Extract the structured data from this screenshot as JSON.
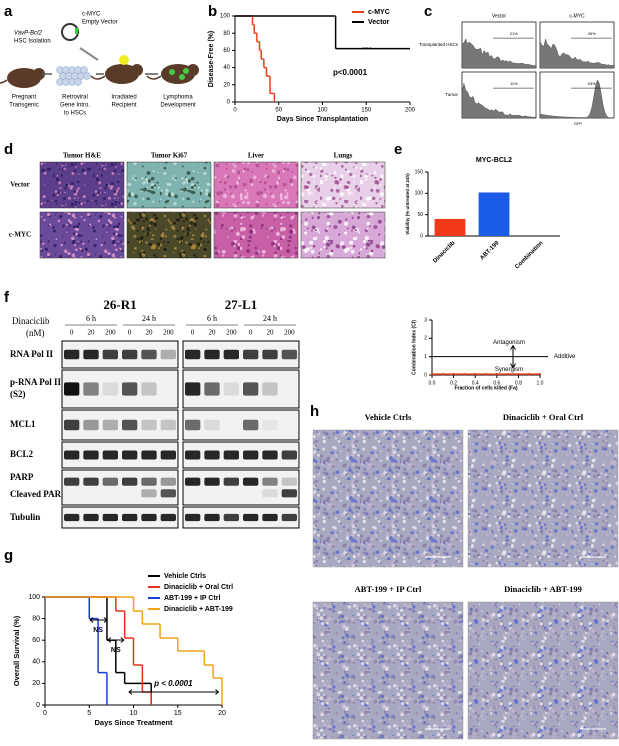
{
  "panel_labels": [
    "a",
    "b",
    "c",
    "d",
    "e",
    "f",
    "g",
    "h"
  ],
  "a": {
    "header": [
      "VavP-Bcl2",
      "HSC Isolation"
    ],
    "vector": [
      "c-MYC",
      "Empty Vector"
    ],
    "steps": [
      [
        "Pregnant",
        "Transgenic"
      ],
      [
        "Retroviral",
        "Gene Intro.",
        "to HSCs"
      ],
      [
        "Irradiated",
        "Recipient"
      ],
      [
        "Lymphoma",
        "Development"
      ]
    ]
  },
  "chart_data": [
    {
      "type": "km",
      "ylabel": "Disease-Free (%)",
      "xlabel": "Days Since Transplantation",
      "xlim": [
        0,
        200
      ],
      "xticks": [
        0,
        50,
        100,
        150,
        200
      ],
      "ylim": [
        0,
        100
      ],
      "yticks": [
        0,
        20,
        40,
        60,
        80,
        100
      ],
      "series": [
        {
          "name": "c-MYC",
          "color": "#e8401c",
          "x": [
            0,
            20,
            22,
            25,
            28,
            30,
            33,
            36,
            40,
            45
          ],
          "values": [
            100,
            90,
            80,
            70,
            60,
            50,
            40,
            30,
            10,
            0
          ]
        },
        {
          "name": "Vector",
          "color": "#000000",
          "x": [
            0,
            115,
            200
          ],
          "values": [
            100,
            62,
            62
          ]
        }
      ],
      "annotations": [
        "****",
        "p<0.0001"
      ]
    },
    {
      "type": "bar",
      "title": "MYC-BCL2",
      "ylabel": "Viability (% untreated at 24h)",
      "categories": [
        "Dinaciclib",
        "ABT-199",
        "Combination"
      ],
      "values": [
        40,
        102,
        0
      ],
      "colors": [
        "#f23a1a",
        "#1a5be8",
        "#888888"
      ],
      "ylim": [
        0,
        150
      ],
      "yticks": [
        0,
        50,
        100,
        150
      ]
    },
    {
      "type": "line",
      "ylabel": "Combination Index (CI)",
      "xlabel": "Fraction of cells killed (Fa)",
      "xlim": [
        0,
        1
      ],
      "xticks": [
        {
          "value": 0,
          "label": "0.0"
        },
        {
          "value": 0.2,
          "label": "0.2"
        },
        {
          "value": 0.4,
          "label": "0.4"
        },
        {
          "value": 0.6,
          "label": "0.6"
        },
        {
          "value": 0.8,
          "label": "0.8"
        },
        {
          "value": 1,
          "label": "1.0"
        }
      ],
      "ylim": [
        0,
        3
      ],
      "yticks": [
        0,
        1,
        2,
        3
      ],
      "reference_line": 1,
      "series": [
        {
          "color": "#e8401c",
          "x": [
            0,
            0.1,
            0.2,
            0.3,
            0.4,
            0.5,
            0.6,
            0.7,
            0.8,
            0.9,
            1
          ],
          "values": [
            0.05,
            0.05,
            0.05,
            0.05,
            0.05,
            0.05,
            0.05,
            0.05,
            0.05,
            0.05,
            0.05
          ]
        }
      ],
      "annotations": [
        "Antagonism",
        "Additive",
        "Synergism"
      ]
    },
    {
      "type": "km",
      "ylabel": "Overall Survival (%)",
      "xlabel": "Days Since Treatment",
      "xlim": [
        0,
        20
      ],
      "xticks": [
        0,
        5,
        10,
        15,
        20
      ],
      "ylim": [
        0,
        100
      ],
      "yticks": [
        0,
        20,
        40,
        60,
        80,
        100
      ],
      "series": [
        {
          "name": "Vehicle Ctrls",
          "color": "#000000",
          "x": [
            0,
            7,
            8,
            9,
            10,
            12
          ],
          "values": [
            100,
            60,
            30,
            20,
            20,
            0
          ]
        },
        {
          "name": "Dinaciclib + Oral Ctrl",
          "color": "#e8301c",
          "x": [
            0,
            8,
            9,
            10,
            11,
            12
          ],
          "values": [
            100,
            87,
            62,
            37,
            12,
            0
          ]
        },
        {
          "name": "ABT-199 + IP Ctrl",
          "color": "#1a3fd6",
          "x": [
            0,
            5,
            6,
            7
          ],
          "values": [
            100,
            80,
            30,
            0
          ]
        },
        {
          "name": "Dinaciclib + ABT-199",
          "color": "#f2a21a",
          "x": [
            0,
            10,
            11,
            13,
            15,
            18,
            19,
            20
          ],
          "values": [
            100,
            87,
            75,
            62,
            50,
            37,
            25,
            0
          ]
        }
      ],
      "annotations": [
        "NS",
        "NS",
        "p < 0.0001"
      ]
    }
  ],
  "c": {
    "columns": [
      "Vector",
      "c-MYC"
    ],
    "rows": [
      "Transplanted HSCs",
      "Tumor"
    ],
    "gates": [
      "21%",
      "26%",
      "11%",
      "93%"
    ],
    "axis": "GFP"
  },
  "d": {
    "columns": [
      "Tumor H&E",
      "Tumor Ki67",
      "Liver",
      "Lungs"
    ],
    "rows": [
      "Vector",
      "c-MYC"
    ]
  },
  "f": {
    "cell_lines": [
      "26-R1",
      "27-L1"
    ],
    "drug": [
      "Dinaciclib",
      "(nM)"
    ],
    "times": [
      "6 h",
      "24 h",
      "6 h",
      "24 h"
    ],
    "doses": [
      "0",
      "20",
      "200",
      "0",
      "20",
      "200",
      "0",
      "20",
      "200",
      "0",
      "20",
      "200"
    ],
    "rows": [
      "RNA Pol II",
      "p-RNA Pol II",
      "(S2)",
      "MCL1",
      "BCL2",
      "PARP",
      "Cleaved PARP",
      "Tubulin"
    ]
  },
  "h": {
    "titles": [
      "Vehicle Ctrls",
      "Dinaciclib + Oral Ctrl",
      "ABT-199 + IP Ctrl",
      "Dinaciclib + ABT-199"
    ]
  }
}
